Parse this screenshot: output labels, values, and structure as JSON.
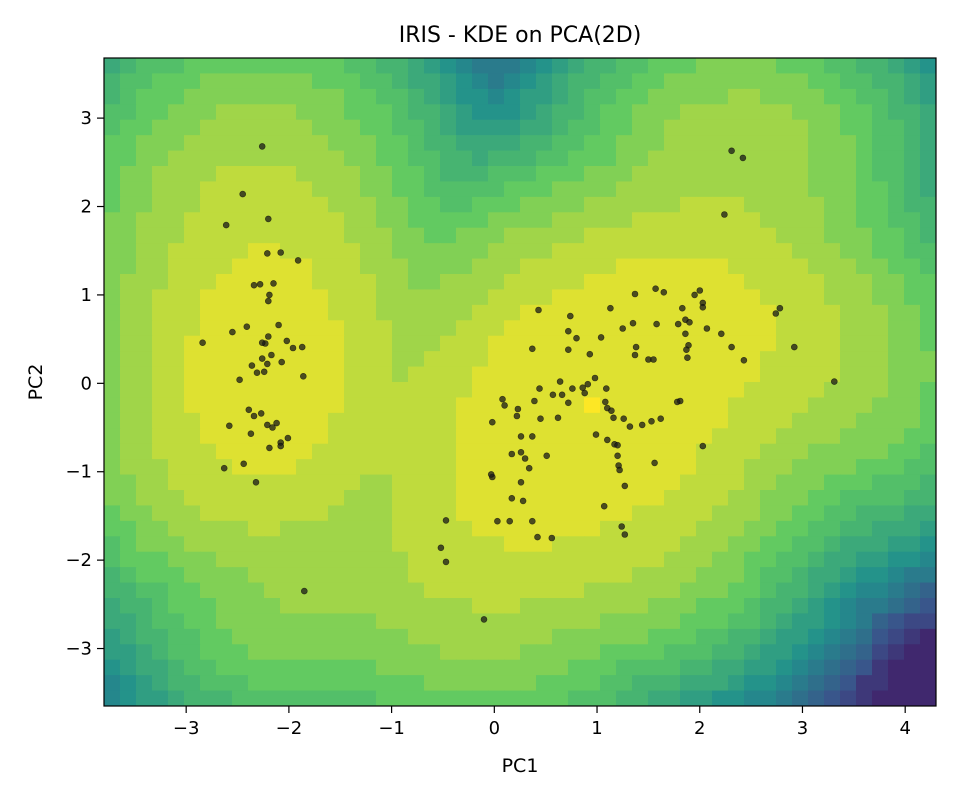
{
  "chart_data": {
    "type": "scatter",
    "title": "IRIS - KDE on PCA(2D)",
    "xlabel": "PC1",
    "ylabel": "PC2",
    "xlim": [
      -3.8,
      4.3
    ],
    "ylim": [
      -3.65,
      3.68
    ],
    "xticks": [
      -3,
      -2,
      -1,
      0,
      1,
      2,
      3,
      4
    ],
    "yticks": [
      -3,
      -2,
      -1,
      0,
      1,
      2,
      3
    ],
    "xtick_labels": [
      "−3",
      "−2",
      "−1",
      "0",
      "1",
      "2",
      "3",
      "4"
    ],
    "ytick_labels": [
      "−3",
      "−2",
      "−1",
      "0",
      "1",
      "2",
      "3"
    ],
    "background": "kde-density-contours",
    "colormap": [
      "#440154",
      "#3b528b",
      "#21918c",
      "#5ec962",
      "#fde725"
    ],
    "point_color": "#000000",
    "grid": false,
    "points": [
      [
        -2.26,
        2.68
      ],
      [
        -2.45,
        2.14
      ],
      [
        -2.61,
        1.79
      ],
      [
        -2.2,
        1.86
      ],
      [
        -2.21,
        1.47
      ],
      [
        -2.08,
        1.48
      ],
      [
        -1.91,
        1.39
      ],
      [
        -2.34,
        1.11
      ],
      [
        -2.28,
        1.12
      ],
      [
        -2.15,
        1.13
      ],
      [
        -2.19,
        1.0
      ],
      [
        -2.2,
        0.93
      ],
      [
        -2.1,
        0.66
      ],
      [
        -2.41,
        0.64
      ],
      [
        -2.55,
        0.58
      ],
      [
        -2.2,
        0.53
      ],
      [
        -2.23,
        0.45
      ],
      [
        -2.26,
        0.46
      ],
      [
        -2.84,
        0.46
      ],
      [
        -2.02,
        0.48
      ],
      [
        -1.87,
        0.41
      ],
      [
        -1.96,
        0.4
      ],
      [
        -2.26,
        0.28
      ],
      [
        -2.17,
        0.32
      ],
      [
        -2.21,
        0.22
      ],
      [
        -2.36,
        0.2
      ],
      [
        -2.07,
        0.24
      ],
      [
        -2.24,
        0.13
      ],
      [
        -2.31,
        0.12
      ],
      [
        -1.86,
        0.08
      ],
      [
        -2.48,
        0.04
      ],
      [
        -2.39,
        -0.3
      ],
      [
        -2.34,
        -0.37
      ],
      [
        -2.27,
        -0.34
      ],
      [
        -2.58,
        -0.48
      ],
      [
        -2.21,
        -0.47
      ],
      [
        -2.12,
        -0.45
      ],
      [
        -2.16,
        -0.5
      ],
      [
        -2.37,
        -0.57
      ],
      [
        -2.08,
        -0.67
      ],
      [
        -2.08,
        -0.71
      ],
      [
        -2.19,
        -0.73
      ],
      [
        -2.01,
        -0.62
      ],
      [
        -2.44,
        -0.91
      ],
      [
        -2.63,
        -0.96
      ],
      [
        -2.32,
        -1.12
      ],
      [
        -1.85,
        -2.35
      ],
      [
        -0.1,
        -2.67
      ],
      [
        -0.47,
        -2.02
      ],
      [
        -0.52,
        -1.86
      ],
      [
        -0.47,
        -1.55
      ],
      [
        0.03,
        -1.56
      ],
      [
        0.15,
        -1.56
      ],
      [
        0.37,
        -1.56
      ],
      [
        0.42,
        -1.74
      ],
      [
        0.56,
        -1.75
      ],
      [
        0.17,
        -1.3
      ],
      [
        0.28,
        -1.33
      ],
      [
        0.26,
        -1.12
      ],
      [
        -0.02,
        -1.06
      ],
      [
        -0.03,
        -1.03
      ],
      [
        0.34,
        -0.96
      ],
      [
        0.17,
        -0.8
      ],
      [
        0.26,
        -0.78
      ],
      [
        0.3,
        -0.85
      ],
      [
        0.51,
        -0.82
      ],
      [
        0.26,
        -0.6
      ],
      [
        0.37,
        -0.6
      ],
      [
        0.22,
        -0.37
      ],
      [
        0.23,
        -0.29
      ],
      [
        0.39,
        -0.2
      ],
      [
        0.45,
        -0.4
      ],
      [
        0.62,
        -0.39
      ],
      [
        0.1,
        -0.25
      ],
      [
        0.08,
        -0.18
      ],
      [
        -0.02,
        -0.44
      ],
      [
        0.44,
        -0.06
      ],
      [
        0.57,
        -0.13
      ],
      [
        0.66,
        -0.13
      ],
      [
        0.64,
        0.02
      ],
      [
        0.76,
        -0.06
      ],
      [
        0.86,
        -0.05
      ],
      [
        0.72,
        -0.22
      ],
      [
        0.88,
        -0.11
      ],
      [
        0.91,
        -0.01
      ],
      [
        0.98,
        0.06
      ],
      [
        1.09,
        -0.06
      ],
      [
        1.1,
        -0.28
      ],
      [
        1.14,
        -0.31
      ],
      [
        1.08,
        -0.21
      ],
      [
        1.16,
        -0.39
      ],
      [
        1.26,
        -0.4
      ],
      [
        1.32,
        -0.49
      ],
      [
        1.44,
        -0.47
      ],
      [
        1.53,
        -0.43
      ],
      [
        1.62,
        -0.4
      ],
      [
        1.81,
        -0.2
      ],
      [
        1.78,
        -0.21
      ],
      [
        2.03,
        -0.71
      ],
      [
        0.99,
        -0.58
      ],
      [
        1.1,
        -0.64
      ],
      [
        1.17,
        -0.69
      ],
      [
        1.2,
        -0.7
      ],
      [
        1.2,
        -0.82
      ],
      [
        1.21,
        -0.93
      ],
      [
        1.22,
        -0.98
      ],
      [
        1.56,
        -0.9
      ],
      [
        1.27,
        -1.16
      ],
      [
        1.07,
        -1.39
      ],
      [
        1.24,
        -1.62
      ],
      [
        1.27,
        -1.71
      ],
      [
        0.37,
        0.39
      ],
      [
        0.72,
        0.38
      ],
      [
        0.8,
        0.51
      ],
      [
        0.72,
        0.59
      ],
      [
        0.74,
        0.76
      ],
      [
        0.43,
        0.83
      ],
      [
        0.93,
        0.33
      ],
      [
        1.04,
        0.52
      ],
      [
        1.13,
        0.85
      ],
      [
        1.25,
        0.62
      ],
      [
        1.35,
        0.68
      ],
      [
        1.37,
        1.01
      ],
      [
        1.57,
        1.07
      ],
      [
        1.65,
        1.03
      ],
      [
        1.38,
        0.41
      ],
      [
        1.37,
        0.32
      ],
      [
        1.5,
        0.27
      ],
      [
        1.55,
        0.27
      ],
      [
        1.58,
        0.67
      ],
      [
        1.79,
        0.67
      ],
      [
        1.83,
        0.85
      ],
      [
        1.86,
        0.72
      ],
      [
        1.86,
        0.56
      ],
      [
        1.9,
        0.69
      ],
      [
        1.89,
        0.43
      ],
      [
        1.87,
        0.38
      ],
      [
        1.88,
        0.29
      ],
      [
        1.95,
        1.0
      ],
      [
        2.0,
        1.05
      ],
      [
        2.03,
        0.91
      ],
      [
        2.03,
        0.86
      ],
      [
        2.07,
        0.62
      ],
      [
        2.21,
        0.56
      ],
      [
        2.31,
        0.41
      ],
      [
        2.43,
        0.26
      ],
      [
        2.74,
        0.79
      ],
      [
        2.78,
        0.85
      ],
      [
        2.92,
        0.41
      ],
      [
        3.31,
        0.02
      ],
      [
        2.24,
        1.91
      ],
      [
        2.31,
        2.63
      ],
      [
        2.42,
        2.55
      ]
    ]
  }
}
